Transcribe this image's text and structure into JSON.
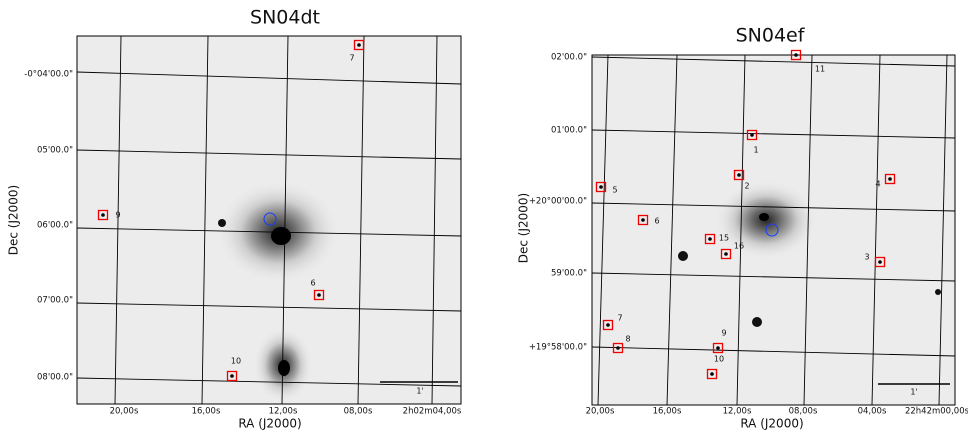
{
  "panels": [
    {
      "title": "SN04dt",
      "x_label": "RA (J2000)",
      "y_label": "Dec (J2000)",
      "x_ticks": [
        "20,00s",
        "16,00s",
        "12,00s",
        "08,00s",
        "2h02m04,00s"
      ],
      "y_ticks": [
        "-0°04'00.0\"",
        "05'00.0\"",
        "06'00.0\"",
        "07'00.0\"",
        "08'00.0\""
      ],
      "markers": [
        "7",
        "9",
        "6",
        "10"
      ],
      "scale_label": "1'"
    },
    {
      "title": "SN04ef",
      "x_label": "RA (J2000)",
      "y_label": "Dec (J2000)",
      "x_ticks": [
        "20,00s",
        "16,00s",
        "12,00s",
        "08,00s",
        "04,00s",
        "22h42m00,00s"
      ],
      "y_ticks": [
        "02'00.0\"",
        "01'00.0\"",
        "+20°00'00.0\"",
        "59'00.0\"",
        "+19°58'00.0\""
      ],
      "markers": [
        "11",
        "1",
        "2",
        "4",
        "5",
        "6",
        "15",
        "16",
        "3",
        "7",
        "8",
        "9",
        "10"
      ],
      "scale_label": "1'"
    }
  ]
}
